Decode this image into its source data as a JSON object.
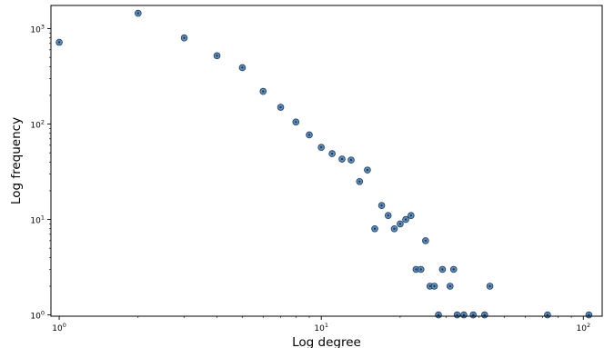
{
  "chart_data": {
    "type": "scatter",
    "title": "",
    "xlabel": "Log degree",
    "ylabel": "Log frequency",
    "xscale": "log",
    "yscale": "log",
    "xlim": [
      0.93,
      118
    ],
    "ylim": [
      0.97,
      1750
    ],
    "grid": false,
    "marker_color": "#5b8fc2",
    "marker_edge_color": "#1f3b5a",
    "x_ticks": [
      {
        "base": "10",
        "exp": "0",
        "value": 1
      },
      {
        "base": "10",
        "exp": "1",
        "value": 10
      },
      {
        "base": "10",
        "exp": "2",
        "value": 100
      }
    ],
    "y_ticks": [
      {
        "base": "10",
        "exp": "0",
        "value": 1
      },
      {
        "base": "10",
        "exp": "1",
        "value": 10
      },
      {
        "base": "10",
        "exp": "2",
        "value": 100
      },
      {
        "base": "10",
        "exp": "3",
        "value": 1000
      }
    ],
    "points": [
      {
        "x": 1,
        "y": 720
      },
      {
        "x": 2,
        "y": 1450
      },
      {
        "x": 3,
        "y": 800
      },
      {
        "x": 4,
        "y": 520
      },
      {
        "x": 5,
        "y": 390
      },
      {
        "x": 6,
        "y": 220
      },
      {
        "x": 7,
        "y": 150
      },
      {
        "x": 8,
        "y": 105
      },
      {
        "x": 9,
        "y": 77
      },
      {
        "x": 10,
        "y": 57
      },
      {
        "x": 11,
        "y": 49
      },
      {
        "x": 12,
        "y": 43
      },
      {
        "x": 13,
        "y": 42
      },
      {
        "x": 14,
        "y": 25
      },
      {
        "x": 15,
        "y": 33
      },
      {
        "x": 16,
        "y": 8
      },
      {
        "x": 17,
        "y": 14
      },
      {
        "x": 18,
        "y": 11
      },
      {
        "x": 19,
        "y": 8
      },
      {
        "x": 20,
        "y": 9
      },
      {
        "x": 21,
        "y": 10
      },
      {
        "x": 22,
        "y": 11
      },
      {
        "x": 23,
        "y": 3
      },
      {
        "x": 24,
        "y": 3
      },
      {
        "x": 25,
        "y": 6
      },
      {
        "x": 26,
        "y": 2
      },
      {
        "x": 27,
        "y": 2
      },
      {
        "x": 28,
        "y": 1
      },
      {
        "x": 29,
        "y": 3
      },
      {
        "x": 31,
        "y": 2
      },
      {
        "x": 32,
        "y": 3
      },
      {
        "x": 33,
        "y": 1
      },
      {
        "x": 35,
        "y": 1
      },
      {
        "x": 38,
        "y": 1
      },
      {
        "x": 42,
        "y": 1
      },
      {
        "x": 44,
        "y": 2
      },
      {
        "x": 73,
        "y": 1
      },
      {
        "x": 105,
        "y": 1
      }
    ]
  }
}
